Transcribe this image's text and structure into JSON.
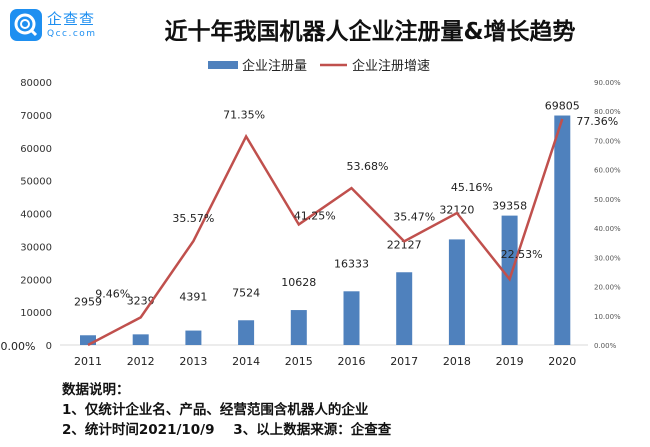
{
  "brand": {
    "name": "企查查",
    "domain": "Qcc.com",
    "color": "#1e8ff0"
  },
  "chart_data": {
    "type": "bar+line",
    "title": "近十年我国机器人企业注册量&增长趋势",
    "categories": [
      "2011",
      "2012",
      "2013",
      "2014",
      "2015",
      "2016",
      "2017",
      "2018",
      "2019",
      "2020"
    ],
    "series": [
      {
        "name": "企业注册量",
        "type": "bar",
        "axis": "left",
        "color": "#4f81bd",
        "values": [
          2959,
          3239,
          4391,
          7524,
          10628,
          16333,
          22127,
          32120,
          39358,
          69805
        ]
      },
      {
        "name": "企业注册增速",
        "type": "line",
        "axis": "right",
        "color": "#c0504d",
        "values": [
          0.0,
          9.46,
          35.57,
          71.35,
          41.25,
          53.68,
          35.47,
          45.16,
          22.53,
          77.36
        ],
        "labels": [
          "0.00%",
          "9.46%",
          "35.57%",
          "71.35%",
          "41.25%",
          "53.68%",
          "35.47%",
          "45.16%",
          "22.53%",
          "77.36%"
        ]
      }
    ],
    "left_axis": {
      "range": [
        0,
        80000
      ],
      "ticks": [
        "0",
        "10000",
        "20000",
        "30000",
        "40000",
        "50000",
        "60000",
        "70000",
        "80000"
      ]
    },
    "right_axis": {
      "range": [
        0,
        90
      ],
      "ticks": [
        "0.00%",
        "10.00%",
        "20.00%",
        "30.00%",
        "40.00%",
        "50.00%",
        "60.00%",
        "70.00%",
        "80.00%",
        "90.00%"
      ]
    },
    "legend_placement": "top-center",
    "grid": false
  },
  "notes": {
    "heading": "数据说明：",
    "line1": "1、仅统计企业名、产品、经营范围含机器人的企业",
    "line2": "2、统计时间2021/10/9    3、以上数据来源：企查查"
  }
}
